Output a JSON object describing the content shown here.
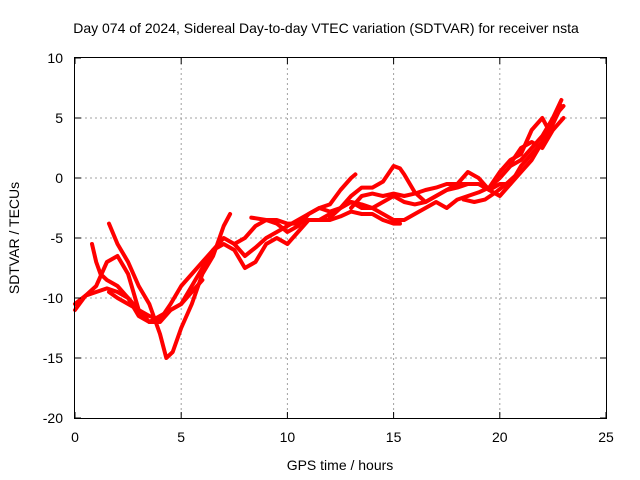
{
  "chart_data": {
    "type": "scatter",
    "title": "Day 074 of 2024, Sidereal Day-to-day VTEC variation (SDTVAR) for receiver nsta",
    "xlabel": "GPS time / hours",
    "ylabel": "SDTVAR / TECUs",
    "xlim": [
      0,
      25
    ],
    "ylim": [
      -20,
      10
    ],
    "xticks": [
      "0",
      "5",
      "10",
      "15",
      "20",
      "25"
    ],
    "yticks": [
      "-20",
      "-15",
      "-10",
      "-5",
      "0",
      "5",
      "10"
    ],
    "grid": true,
    "series_color": "#ff0000",
    "series": [
      {
        "name": "track-1",
        "points": [
          [
            0,
            -11
          ],
          [
            0.5,
            -9.8
          ],
          [
            1,
            -9.5
          ],
          [
            1.5,
            -9.2
          ],
          [
            2,
            -9.5
          ],
          [
            2.5,
            -10
          ],
          [
            3,
            -11.5
          ],
          [
            3.5,
            -12
          ],
          [
            4,
            -11.5
          ],
          [
            4.5,
            -11
          ],
          [
            5,
            -10.5
          ],
          [
            5.5,
            -9
          ],
          [
            6,
            -7.5
          ],
          [
            6.5,
            -6
          ],
          [
            7,
            -5
          ],
          [
            7.5,
            -5.5
          ],
          [
            8,
            -6.5
          ],
          [
            8.5,
            -5.8
          ],
          [
            9,
            -5
          ],
          [
            9.5,
            -4.5
          ],
          [
            10,
            -4
          ],
          [
            10.5,
            -3.5
          ],
          [
            11,
            -3
          ],
          [
            11.5,
            -2.5
          ],
          [
            12,
            -2.8
          ],
          [
            12.5,
            -2.5
          ],
          [
            13,
            -2
          ],
          [
            13.5,
            -2.5
          ],
          [
            14,
            -2.5
          ],
          [
            14.5,
            -2
          ],
          [
            15,
            -1.5
          ],
          [
            15.5,
            -2
          ],
          [
            16,
            -2.2
          ],
          [
            16.5,
            -2
          ],
          [
            17,
            -1.5
          ],
          [
            17.5,
            -1
          ],
          [
            18,
            -0.8
          ],
          [
            18.5,
            -0.5
          ],
          [
            19,
            -0.5
          ],
          [
            19.5,
            -1
          ],
          [
            20,
            -0.5
          ],
          [
            20.5,
            -0.5
          ],
          [
            21,
            0.5
          ],
          [
            21.5,
            1.5
          ],
          [
            22,
            3
          ],
          [
            22.5,
            4.5
          ],
          [
            22.9,
            6
          ]
        ]
      },
      {
        "name": "track-2",
        "points": [
          [
            0.8,
            -5.5
          ],
          [
            1,
            -7
          ],
          [
            1.2,
            -8
          ],
          [
            1.5,
            -8.5
          ],
          [
            2,
            -9
          ],
          [
            2.5,
            -10
          ],
          [
            3,
            -11
          ],
          [
            3.5,
            -11.5
          ],
          [
            4,
            -11.8
          ],
          [
            4.5,
            -10.5
          ],
          [
            5,
            -9
          ],
          [
            5.5,
            -8
          ],
          [
            6,
            -7
          ],
          [
            6.5,
            -6
          ],
          [
            7,
            -5.5
          ],
          [
            7.5,
            -6
          ],
          [
            8,
            -7.5
          ],
          [
            8.5,
            -7
          ],
          [
            9,
            -5.5
          ],
          [
            9.5,
            -5
          ],
          [
            10,
            -5.5
          ],
          [
            10.5,
            -4.5
          ],
          [
            11,
            -3.5
          ],
          [
            11.5,
            -3.5
          ],
          [
            12,
            -3
          ],
          [
            12.5,
            -2.5
          ],
          [
            13,
            -2
          ],
          [
            13.5,
            -2.2
          ],
          [
            14,
            -2.5
          ],
          [
            14.5,
            -3
          ],
          [
            15,
            -3.5
          ],
          [
            15.5,
            -3.5
          ],
          [
            16,
            -3
          ],
          [
            16.5,
            -2.5
          ],
          [
            17,
            -2
          ],
          [
            17.5,
            -2.5
          ],
          [
            18,
            -1.8
          ],
          [
            18.5,
            -1.5
          ],
          [
            19,
            -1.2
          ],
          [
            19.5,
            -0.8
          ],
          [
            20,
            0
          ],
          [
            20.5,
            1
          ],
          [
            21,
            1.5
          ],
          [
            21.5,
            2.5
          ],
          [
            22,
            3.5
          ],
          [
            22.5,
            5
          ],
          [
            22.9,
            6.5
          ]
        ]
      },
      {
        "name": "track-3",
        "points": [
          [
            1.6,
            -3.8
          ],
          [
            2,
            -5.5
          ],
          [
            2.5,
            -7
          ],
          [
            3,
            -9
          ],
          [
            3.5,
            -10.5
          ],
          [
            4,
            -13
          ],
          [
            4.3,
            -15
          ],
          [
            4.6,
            -14.5
          ],
          [
            5,
            -12.5
          ],
          [
            5.5,
            -10.5
          ],
          [
            6,
            -8
          ],
          [
            6.5,
            -6.5
          ],
          [
            7,
            -4
          ],
          [
            7.3,
            -3
          ]
        ]
      },
      {
        "name": "track-4",
        "points": [
          [
            1.6,
            -9.5
          ],
          [
            2,
            -10
          ],
          [
            2.5,
            -10.5
          ],
          [
            3,
            -11
          ],
          [
            3.5,
            -12
          ],
          [
            4,
            -12
          ],
          [
            4.5,
            -11
          ],
          [
            5,
            -10.5
          ],
          [
            5.5,
            -9.5
          ],
          [
            6,
            -8.5
          ]
        ]
      },
      {
        "name": "track-5",
        "points": [
          [
            7.5,
            -5.5
          ],
          [
            8,
            -5
          ],
          [
            8.5,
            -4
          ],
          [
            9,
            -3.5
          ],
          [
            9.5,
            -3.5
          ],
          [
            10,
            -3.8
          ],
          [
            10.5,
            -3.8
          ],
          [
            11,
            -3.5
          ],
          [
            11.5,
            -3.5
          ],
          [
            12,
            -3.5
          ],
          [
            12.5,
            -3.2
          ],
          [
            13,
            -2.8
          ],
          [
            13.5,
            -3
          ],
          [
            14,
            -3
          ],
          [
            14.5,
            -3.5
          ],
          [
            15,
            -3.8
          ],
          [
            15.3,
            -3.8
          ]
        ]
      },
      {
        "name": "track-6",
        "points": [
          [
            8.3,
            -3.3
          ],
          [
            9,
            -3.5
          ],
          [
            9.5,
            -3.8
          ],
          [
            10,
            -4.5
          ],
          [
            10.5,
            -4
          ],
          [
            11,
            -3
          ],
          [
            11.5,
            -2.5
          ],
          [
            12,
            -2.2
          ],
          [
            12.5,
            -1
          ],
          [
            13,
            0
          ],
          [
            13.2,
            0.3
          ]
        ]
      },
      {
        "name": "track-7",
        "points": [
          [
            12,
            -3.3
          ],
          [
            12.5,
            -2.5
          ],
          [
            13,
            -1.5
          ],
          [
            13.5,
            -0.8
          ],
          [
            14,
            -0.8
          ],
          [
            14.5,
            -0.3
          ],
          [
            15,
            1
          ],
          [
            15.3,
            0.8
          ],
          [
            15.5,
            0.3
          ],
          [
            16,
            -1.2
          ],
          [
            16.5,
            -2
          ],
          [
            17,
            -1.5
          ],
          [
            17.5,
            -1
          ],
          [
            18,
            -0.5
          ],
          [
            18.5,
            0.5
          ],
          [
            19,
            0
          ],
          [
            19.5,
            -1
          ],
          [
            20,
            -1.5
          ],
          [
            20.5,
            -0.5
          ],
          [
            21,
            1
          ],
          [
            21.5,
            2
          ],
          [
            22,
            3
          ],
          [
            22.5,
            5
          ],
          [
            23,
            6
          ]
        ]
      },
      {
        "name": "track-8",
        "points": [
          [
            13,
            -2.5
          ],
          [
            13.5,
            -1.5
          ],
          [
            14,
            -1.3
          ],
          [
            14.5,
            -1.5
          ],
          [
            15,
            -1.3
          ],
          [
            15.5,
            -1.5
          ],
          [
            16,
            -1.3
          ],
          [
            16.5,
            -1
          ],
          [
            17,
            -0.8
          ],
          [
            17.5,
            -0.5
          ],
          [
            18,
            -0.5
          ],
          [
            18.5,
            -0.5
          ]
        ]
      },
      {
        "name": "track-9",
        "points": [
          [
            19.5,
            -0.8
          ],
          [
            20,
            0.5
          ],
          [
            20.5,
            1.5
          ],
          [
            21,
            2
          ],
          [
            21.5,
            4
          ],
          [
            22,
            5
          ],
          [
            22.3,
            4
          ]
        ]
      },
      {
        "name": "track-10",
        "points": [
          [
            18.3,
            -1.8
          ],
          [
            18.8,
            -2
          ],
          [
            19.3,
            -1.8
          ],
          [
            19.8,
            -1.2
          ],
          [
            20.3,
            -0.5
          ],
          [
            20.8,
            0.3
          ]
        ]
      },
      {
        "name": "track-11",
        "points": [
          [
            0,
            -10.5
          ],
          [
            0.5,
            -9.8
          ],
          [
            1,
            -9
          ],
          [
            1.5,
            -7
          ],
          [
            2,
            -6.5
          ],
          [
            2.5,
            -8
          ],
          [
            3,
            -11
          ]
        ]
      },
      {
        "name": "track-12",
        "points": [
          [
            20.5,
            1.2
          ],
          [
            21,
            2.5
          ],
          [
            21.5,
            3
          ],
          [
            22,
            2.5
          ],
          [
            22.5,
            4
          ],
          [
            23,
            5
          ]
        ]
      }
    ]
  }
}
